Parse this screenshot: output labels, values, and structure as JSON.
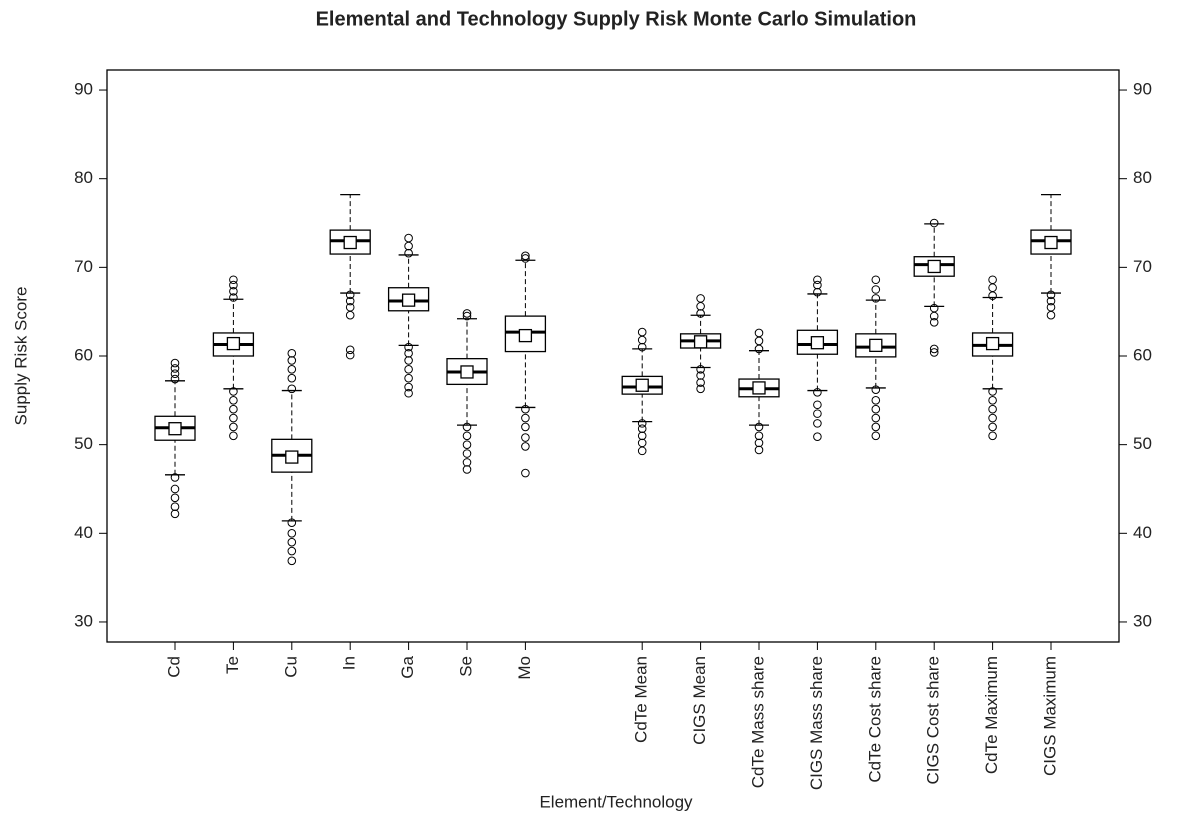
{
  "chart_data": {
    "type": "boxplot",
    "title": "Elemental and Technology Supply Risk Monte Carlo Simulation",
    "xlabel": "Element/Technology",
    "ylabel": "Supply Risk Score",
    "categories": [
      "Cd",
      "Te",
      "Cu",
      "In",
      "Ga",
      "Se",
      "Mo",
      null,
      "CdTe Mean",
      "CIGS Mean",
      "CdTe Mass share",
      "CIGS Mass share",
      "CdTe Cost share",
      "CIGS Cost share",
      "CdTe Maximum",
      "CIGS Maximum"
    ],
    "boxes": [
      {
        "whisker_low": 46.6,
        "q1": 50.5,
        "median": 51.9,
        "q3": 53.2,
        "whisker_high": 57.2,
        "mean": 51.8,
        "outliers": [
          42.2,
          43,
          44,
          45,
          46.3,
          57.4,
          58,
          58.6,
          59.2
        ]
      },
      {
        "whisker_low": 56.3,
        "q1": 60.0,
        "median": 61.3,
        "q3": 62.6,
        "whisker_high": 66.4,
        "mean": 61.4,
        "outliers": [
          51.0,
          52,
          53,
          54,
          55,
          56,
          66.6,
          67.3,
          68,
          68.6
        ]
      },
      {
        "whisker_low": 41.4,
        "q1": 46.9,
        "median": 48.8,
        "q3": 50.6,
        "whisker_high": 56.1,
        "mean": 48.6,
        "outliers": [
          36.9,
          38,
          39,
          40,
          41.2,
          56.3,
          57.5,
          58.5,
          59.5,
          60.3
        ]
      },
      {
        "whisker_low": 67.1,
        "q1": 71.5,
        "median": 73.0,
        "q3": 74.2,
        "whisker_high": 78.2,
        "mean": 72.8,
        "outliers": [
          60.1,
          60.7,
          64.6,
          65.5,
          66.2,
          66.9
        ]
      },
      {
        "whisker_low": 61.2,
        "q1": 65.1,
        "median": 66.2,
        "q3": 67.7,
        "whisker_high": 71.4,
        "mean": 66.3,
        "outliers": [
          55.8,
          56.5,
          57.5,
          58.5,
          59.5,
          60.3,
          61,
          71.6,
          72.4,
          73.3
        ]
      },
      {
        "whisker_low": 52.2,
        "q1": 56.8,
        "median": 58.2,
        "q3": 59.7,
        "whisker_high": 64.2,
        "mean": 58.2,
        "outliers": [
          47.2,
          48,
          49,
          50,
          51,
          52,
          64.5,
          64.8
        ]
      },
      {
        "whisker_low": 54.2,
        "q1": 60.5,
        "median": 62.7,
        "q3": 64.5,
        "whisker_high": 70.8,
        "mean": 62.3,
        "outliers": [
          46.8,
          49.8,
          50.8,
          52,
          53,
          54,
          71.0,
          71.3
        ]
      },
      null,
      {
        "whisker_low": 52.6,
        "q1": 55.7,
        "median": 56.5,
        "q3": 57.7,
        "whisker_high": 60.8,
        "mean": 56.7,
        "outliers": [
          49.3,
          50.2,
          51,
          51.8,
          52.4,
          61,
          61.8,
          62.7
        ]
      },
      {
        "whisker_low": 58.7,
        "q1": 60.9,
        "median": 61.7,
        "q3": 62.5,
        "whisker_high": 64.6,
        "mean": 61.6,
        "outliers": [
          56.3,
          57,
          57.8,
          58.5,
          64.8,
          65.6,
          66.5
        ]
      },
      {
        "whisker_low": 52.2,
        "q1": 55.4,
        "median": 56.3,
        "q3": 57.4,
        "whisker_high": 60.6,
        "mean": 56.4,
        "outliers": [
          49.4,
          50.2,
          51,
          52,
          60.8,
          61.7,
          62.6
        ]
      },
      {
        "whisker_low": 56.1,
        "q1": 60.2,
        "median": 61.3,
        "q3": 62.9,
        "whisker_high": 67.0,
        "mean": 61.5,
        "outliers": [
          50.9,
          52.4,
          53.5,
          54.5,
          55.9,
          67.2,
          68.0,
          68.6
        ]
      },
      {
        "whisker_low": 56.4,
        "q1": 59.9,
        "median": 61.0,
        "q3": 62.5,
        "whisker_high": 66.3,
        "mean": 61.2,
        "outliers": [
          51.0,
          52,
          53,
          54,
          55,
          56.2,
          66.5,
          67.5,
          68.6
        ]
      },
      {
        "whisker_low": 65.6,
        "q1": 69.0,
        "median": 70.3,
        "q3": 71.2,
        "whisker_high": 74.9,
        "mean": 70.1,
        "outliers": [
          60.4,
          60.8,
          63.8,
          64.5,
          65.4,
          75.0
        ]
      },
      {
        "whisker_low": 56.3,
        "q1": 60.0,
        "median": 61.2,
        "q3": 62.6,
        "whisker_high": 66.6,
        "mean": 61.4,
        "outliers": [
          51.0,
          52,
          53,
          54,
          55,
          56,
          66.8,
          67.7,
          68.6
        ]
      },
      {
        "whisker_low": 67.1,
        "q1": 71.5,
        "median": 73.0,
        "q3": 74.2,
        "whisker_high": 78.2,
        "mean": 72.8,
        "outliers": [
          64.6,
          65.5,
          66.2,
          66.9
        ]
      }
    ],
    "ylim": [
      27.74,
      92.26
    ],
    "yticks": [
      30,
      40,
      50,
      60,
      70,
      80,
      90
    ],
    "y2lim": [
      27.74,
      92.26
    ],
    "y2ticks": [
      30,
      40,
      50,
      60,
      70,
      80,
      90
    ]
  }
}
